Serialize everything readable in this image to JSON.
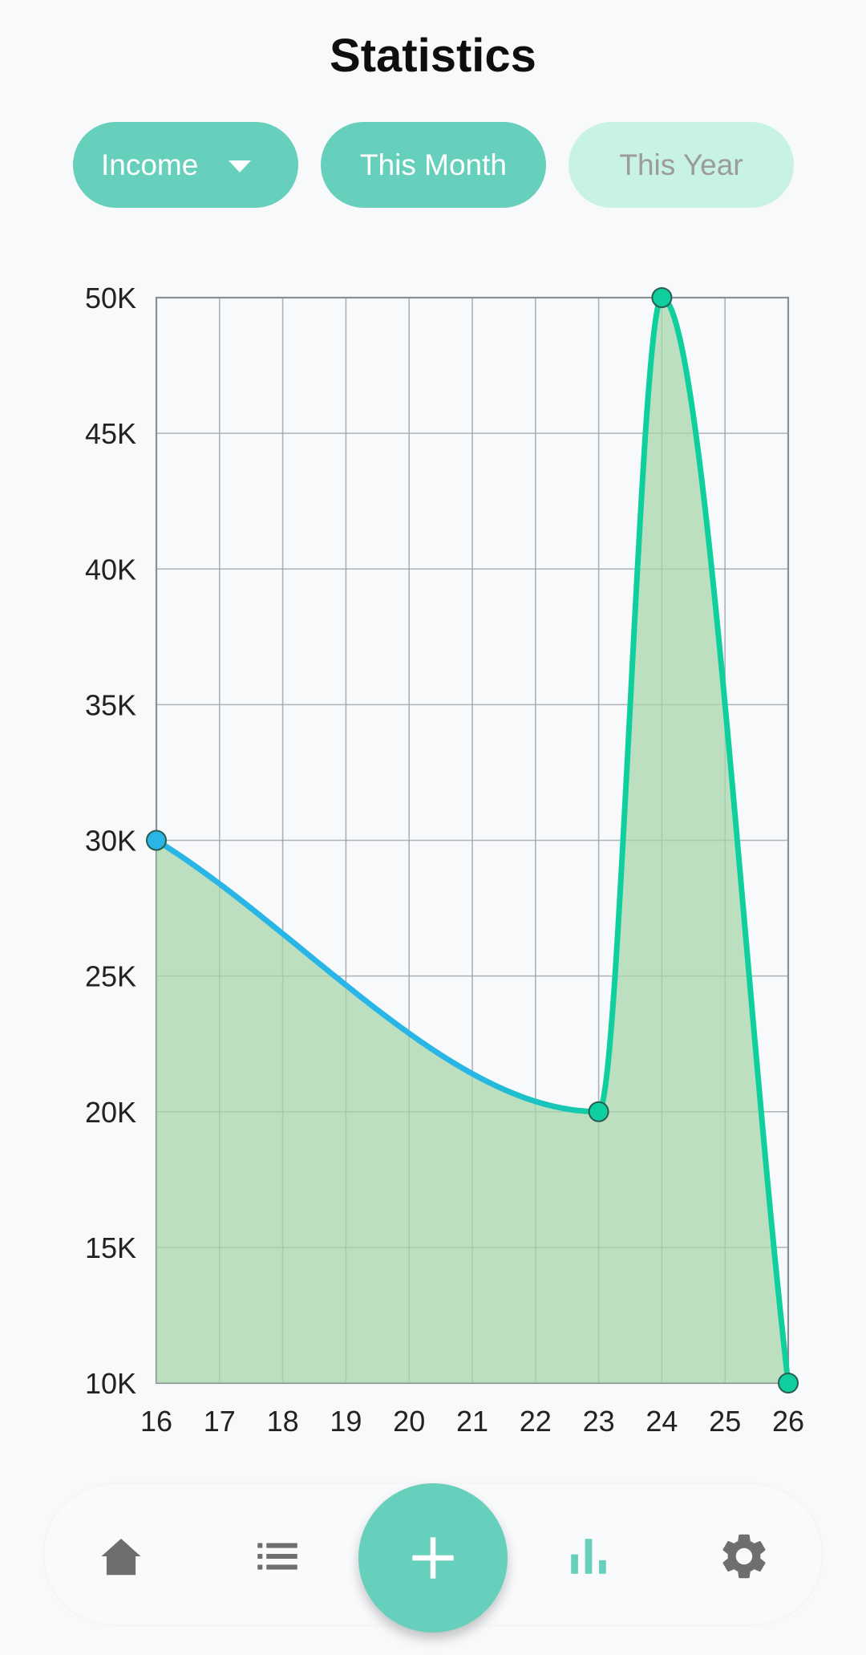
{
  "header": {
    "title": "Statistics"
  },
  "filters": {
    "type_selected": "Income",
    "period_month": "This Month",
    "period_year": "This Year",
    "active_period": "This Month"
  },
  "colors": {
    "accent": "#66d0bd",
    "accent_light": "#c9f2e7",
    "line_start": "#29b6e6",
    "line_end": "#0fcf9f",
    "area_fill": "#a5d6a7",
    "grid": "#9aa0a6"
  },
  "chart_data": {
    "type": "area",
    "x": [
      16,
      23,
      24,
      26
    ],
    "y": [
      30000,
      20000,
      50000,
      10000
    ],
    "x_ticks": [
      "16",
      "17",
      "18",
      "19",
      "20",
      "21",
      "22",
      "23",
      "24",
      "25",
      "26"
    ],
    "y_ticks": [
      "10K",
      "15K",
      "20K",
      "25K",
      "30K",
      "35K",
      "40K",
      "45K",
      "50K"
    ],
    "xlim": [
      16,
      26
    ],
    "ylim": [
      10000,
      50000
    ],
    "grid": true,
    "curved": true,
    "filled": true
  },
  "navbar": {
    "items": [
      {
        "icon": "home-icon"
      },
      {
        "icon": "list-icon"
      },
      {
        "icon": "add-icon"
      },
      {
        "icon": "bar-chart-icon",
        "active": true
      },
      {
        "icon": "gear-icon"
      }
    ]
  }
}
